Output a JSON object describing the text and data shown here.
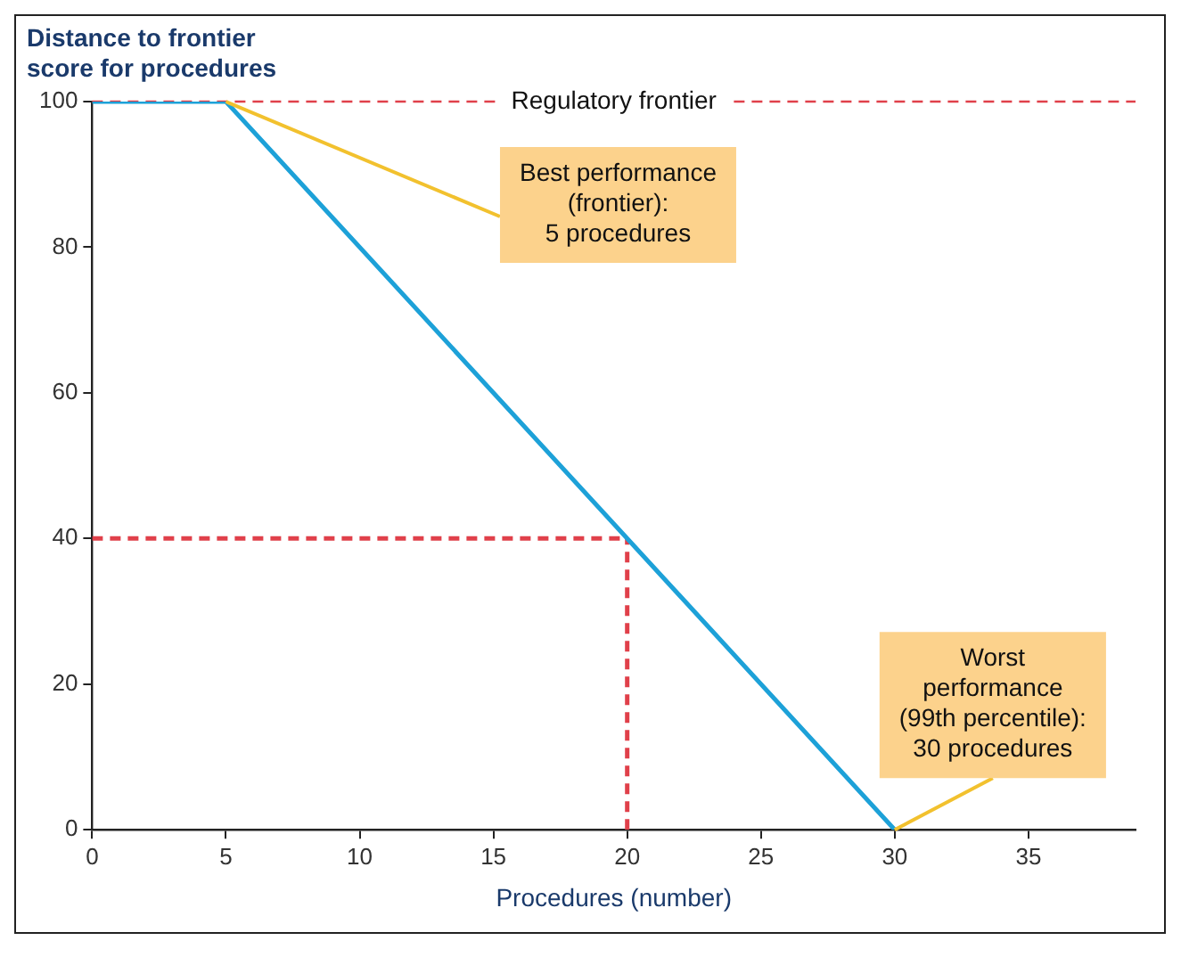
{
  "chart_data": {
    "type": "line",
    "xlabel": "Procedures (number)",
    "ylabel": "Distance to frontier\nscore for procedures",
    "xlim": [
      0,
      39
    ],
    "xticks": [
      0,
      5,
      10,
      15,
      20,
      25,
      30,
      35
    ],
    "ylim": [
      0,
      100
    ],
    "yticks": [
      0,
      20,
      40,
      60,
      80,
      100
    ],
    "grid": false,
    "legend": false,
    "marker": "none",
    "series": [
      {
        "type": "line",
        "color": "#1da1d8",
        "x": [
          0,
          5,
          30
        ],
        "values": [
          100,
          100,
          0
        ]
      },
      {
        "type": "line",
        "color": "#e0404a",
        "line_style": "dashed",
        "x": [
          0,
          20
        ],
        "values": [
          40,
          40
        ]
      },
      {
        "type": "line",
        "color": "#e0404a",
        "line_style": "dashed",
        "x": [
          20,
          20
        ],
        "values": [
          0,
          40
        ]
      }
    ],
    "ref_lines": [
      {
        "axis": "y",
        "value": 100,
        "label": "Regulatory frontier",
        "color": "#e0404a",
        "line_style": "dashed"
      }
    ],
    "annotations": [
      {
        "text": "Best performance\n(frontier):\n5 procedures",
        "x": 5,
        "y": 100
      },
      {
        "text": "Worst\nperformance\n(99th percentile):\n30 procedures",
        "x": 30,
        "y": 0
      }
    ]
  }
}
